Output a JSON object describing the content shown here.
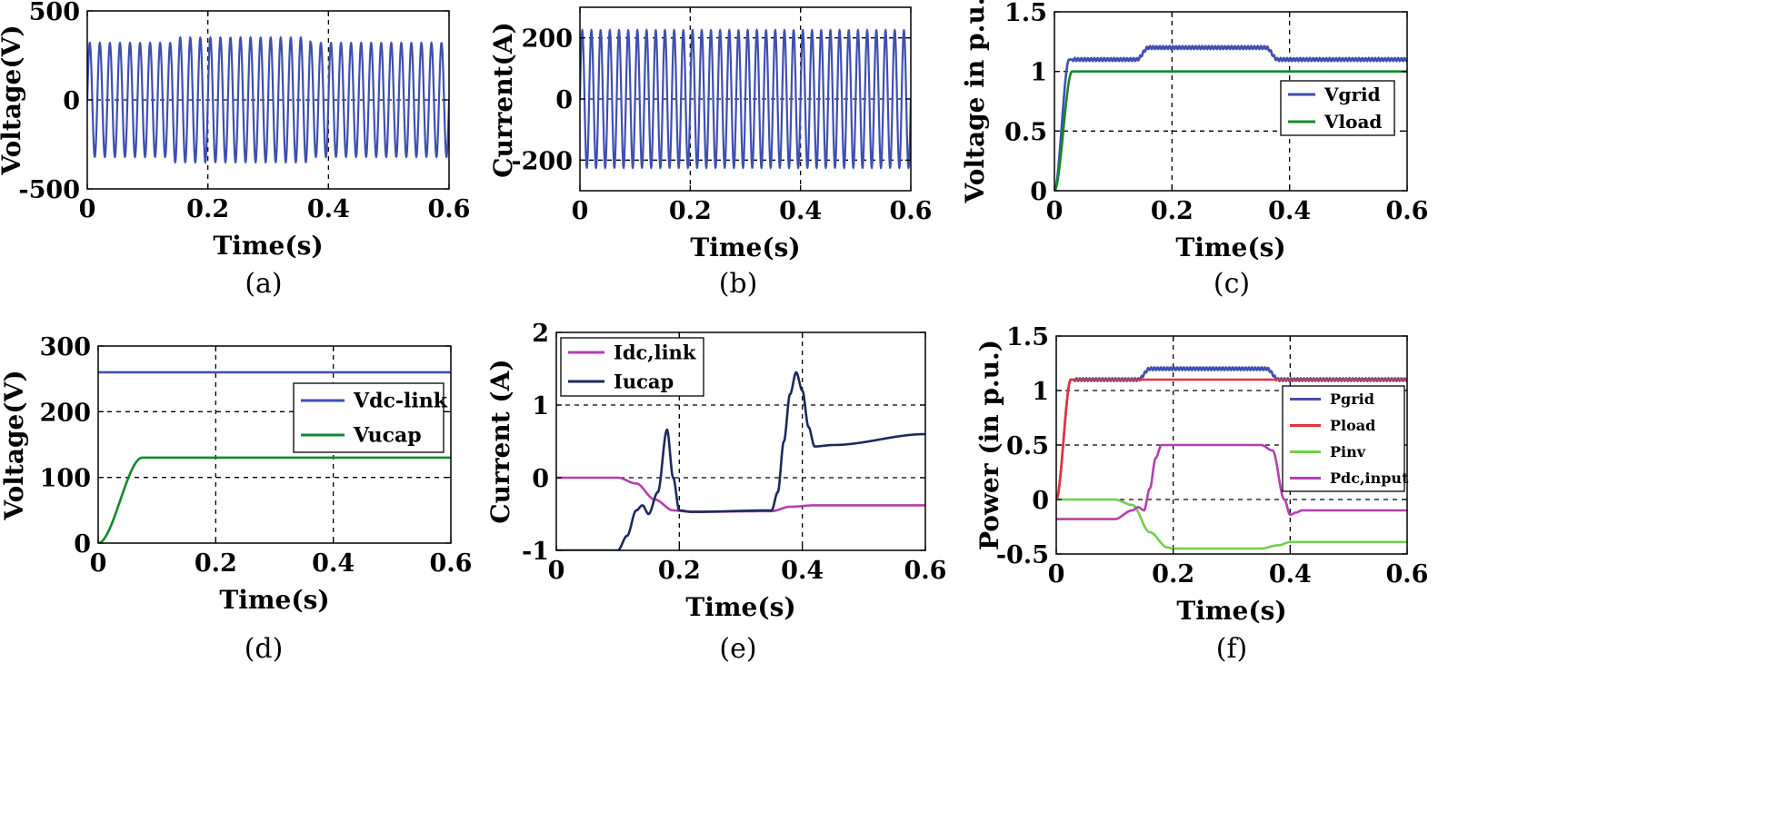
{
  "chart_data": [
    {
      "type": "line",
      "panel": "a",
      "caption": "(a)",
      "xlabel": "Time(s)",
      "ylabel": "Voltage(V)",
      "xlim": [
        0,
        0.6
      ],
      "ylim": [
        -500,
        500
      ],
      "xticks": [
        0,
        0.2,
        0.4,
        0.6
      ],
      "xtick_labels": [
        "0",
        "0.2",
        "0.4",
        "0.6"
      ],
      "yticks": [
        -500,
        0,
        500
      ],
      "ytick_labels": [
        "-500",
        "0",
        "500"
      ],
      "grid": true,
      "legend": null,
      "series": [
        {
          "name": "Voltage",
          "color": "#3f4fb0",
          "kind": "sine",
          "amplitude": 320,
          "frequency_hz": 60,
          "amplitude_changes": [
            {
              "from": 0.14,
              "to": 0.37,
              "amplitude": 350
            }
          ]
        }
      ]
    },
    {
      "type": "line",
      "panel": "b",
      "caption": "(b)",
      "xlabel": "Time(s)",
      "ylabel": "Current(A)",
      "xlim": [
        0,
        0.6
      ],
      "ylim": [
        -300,
        300
      ],
      "xticks": [
        0,
        0.2,
        0.4,
        0.6
      ],
      "xtick_labels": [
        "0",
        "0.2",
        "0.4",
        "0.6"
      ],
      "yticks": [
        -200,
        0,
        200
      ],
      "ytick_labels": [
        "-200",
        "0",
        "200"
      ],
      "grid": true,
      "legend": null,
      "series": [
        {
          "name": "Current",
          "color": "#3f4fb0",
          "kind": "sine",
          "amplitude": 225,
          "frequency_hz": 60
        }
      ]
    },
    {
      "type": "line",
      "panel": "c",
      "caption": "(c)",
      "xlabel": "Time(s)",
      "ylabel": "Voltage in p.u.",
      "xlim": [
        0,
        0.6
      ],
      "ylim": [
        0,
        1.5
      ],
      "xticks": [
        0,
        0.2,
        0.4,
        0.6
      ],
      "xtick_labels": [
        "0",
        "0.2",
        "0.4",
        "0.6"
      ],
      "yticks": [
        0,
        0.5,
        1,
        1.5
      ],
      "ytick_labels": [
        "0",
        "0.5",
        "1",
        "1.5"
      ],
      "grid": true,
      "legend": "top-right",
      "series": [
        {
          "name": "Vgrid",
          "color": "#3f4fb0",
          "ripple": 0.012,
          "x": [
            0,
            0.025,
            0.14,
            0.16,
            0.36,
            0.38,
            0.6
          ],
          "y": [
            0,
            1.1,
            1.1,
            1.2,
            1.2,
            1.1,
            1.1
          ]
        },
        {
          "name": "Vload",
          "color": "#118a2a",
          "x": [
            0,
            0.03,
            0.6
          ],
          "y": [
            0,
            1.0,
            1.0
          ]
        }
      ]
    },
    {
      "type": "line",
      "panel": "d",
      "caption": "(d)",
      "xlabel": "Time(s)",
      "ylabel": "Voltage(V)",
      "xlim": [
        0,
        0.6
      ],
      "ylim": [
        0,
        300
      ],
      "xticks": [
        0,
        0.2,
        0.4,
        0.6
      ],
      "xtick_labels": [
        "0",
        "0.2",
        "0.4",
        "0.6"
      ],
      "yticks": [
        0,
        100,
        200,
        300
      ],
      "ytick_labels": [
        "0",
        "100",
        "200",
        "300"
      ],
      "grid": true,
      "legend": "right",
      "series": [
        {
          "name": "Vdc-link",
          "color": "#3f4fb0",
          "x": [
            0,
            0.6
          ],
          "y": [
            260,
            260
          ]
        },
        {
          "name": "Vucap",
          "color": "#118a2a",
          "x": [
            0,
            0.075,
            0.6
          ],
          "y": [
            0,
            130,
            130
          ]
        }
      ]
    },
    {
      "type": "line",
      "panel": "e",
      "caption": "(e)",
      "xlabel": "Time(s)",
      "ylabel": "Current (A)",
      "xlim": [
        0,
        0.6
      ],
      "ylim": [
        -1,
        2
      ],
      "xticks": [
        0,
        0.2,
        0.4,
        0.6
      ],
      "xtick_labels": [
        "0",
        "0.2",
        "0.4",
        "0.6"
      ],
      "yticks": [
        -1,
        0,
        1,
        2
      ],
      "ytick_labels": [
        "-1",
        "0",
        "1",
        "2"
      ],
      "grid": true,
      "legend": "top-left",
      "series": [
        {
          "name": "Idc,link",
          "color": "#b43fb0",
          "x": [
            0,
            0.1,
            0.13,
            0.16,
            0.19,
            0.22,
            0.35,
            0.38,
            0.42,
            0.6
          ],
          "y": [
            0,
            0,
            -0.08,
            -0.3,
            -0.45,
            -0.47,
            -0.46,
            -0.4,
            -0.38,
            -0.38
          ]
        },
        {
          "name": "Iucap",
          "color": "#1c2a5c",
          "x": [
            0,
            0.1,
            0.115,
            0.13,
            0.14,
            0.15,
            0.165,
            0.18,
            0.19,
            0.2,
            0.22,
            0.35,
            0.36,
            0.37,
            0.38,
            0.39,
            0.4,
            0.41,
            0.42,
            0.45,
            0.6
          ],
          "y": [
            -1,
            -1,
            -0.8,
            -0.45,
            -0.38,
            -0.5,
            -0.2,
            0.66,
            0.0,
            -0.45,
            -0.47,
            -0.45,
            -0.2,
            0.5,
            1.15,
            1.45,
            1.2,
            0.7,
            0.43,
            0.45,
            0.6
          ]
        }
      ]
    },
    {
      "type": "line",
      "panel": "f",
      "caption": "(f)",
      "xlabel": "Time(s)",
      "ylabel": "Power (in p.u.)",
      "xlim": [
        0,
        0.6
      ],
      "ylim": [
        -0.5,
        1.5
      ],
      "xticks": [
        0,
        0.2,
        0.4,
        0.6
      ],
      "xtick_labels": [
        "0",
        "0.2",
        "0.4",
        "0.6"
      ],
      "yticks": [
        -0.5,
        0,
        0.5,
        1,
        1.5
      ],
      "ytick_labels": [
        "-0.5",
        "0",
        "0.5",
        "1",
        "1.5"
      ],
      "grid": true,
      "legend": "right",
      "series": [
        {
          "name": "Pgrid",
          "color": "#3f4fb0",
          "ripple": 0.012,
          "x": [
            0,
            0.025,
            0.14,
            0.16,
            0.36,
            0.38,
            0.6
          ],
          "y": [
            0,
            1.1,
            1.1,
            1.2,
            1.2,
            1.1,
            1.1
          ]
        },
        {
          "name": "Pload",
          "color": "#e8303a",
          "x": [
            0,
            0.025,
            0.6
          ],
          "y": [
            0,
            1.1,
            1.1
          ]
        },
        {
          "name": "Pinv",
          "color": "#6fcf4a",
          "x": [
            0,
            0.1,
            0.13,
            0.16,
            0.19,
            0.2,
            0.35,
            0.38,
            0.4,
            0.6
          ],
          "y": [
            0,
            0,
            -0.05,
            -0.3,
            -0.44,
            -0.45,
            -0.45,
            -0.42,
            -0.39,
            -0.39
          ]
        },
        {
          "name": "Pdc,input",
          "color": "#b43fb0",
          "x": [
            0,
            0.1,
            0.13,
            0.14,
            0.15,
            0.16,
            0.17,
            0.18,
            0.35,
            0.37,
            0.39,
            0.4,
            0.41,
            0.42,
            0.6
          ],
          "y": [
            -0.18,
            -0.18,
            -0.1,
            -0.07,
            -0.1,
            0.1,
            0.38,
            0.5,
            0.5,
            0.45,
            0.0,
            -0.14,
            -0.12,
            -0.1,
            -0.1
          ]
        }
      ]
    }
  ]
}
